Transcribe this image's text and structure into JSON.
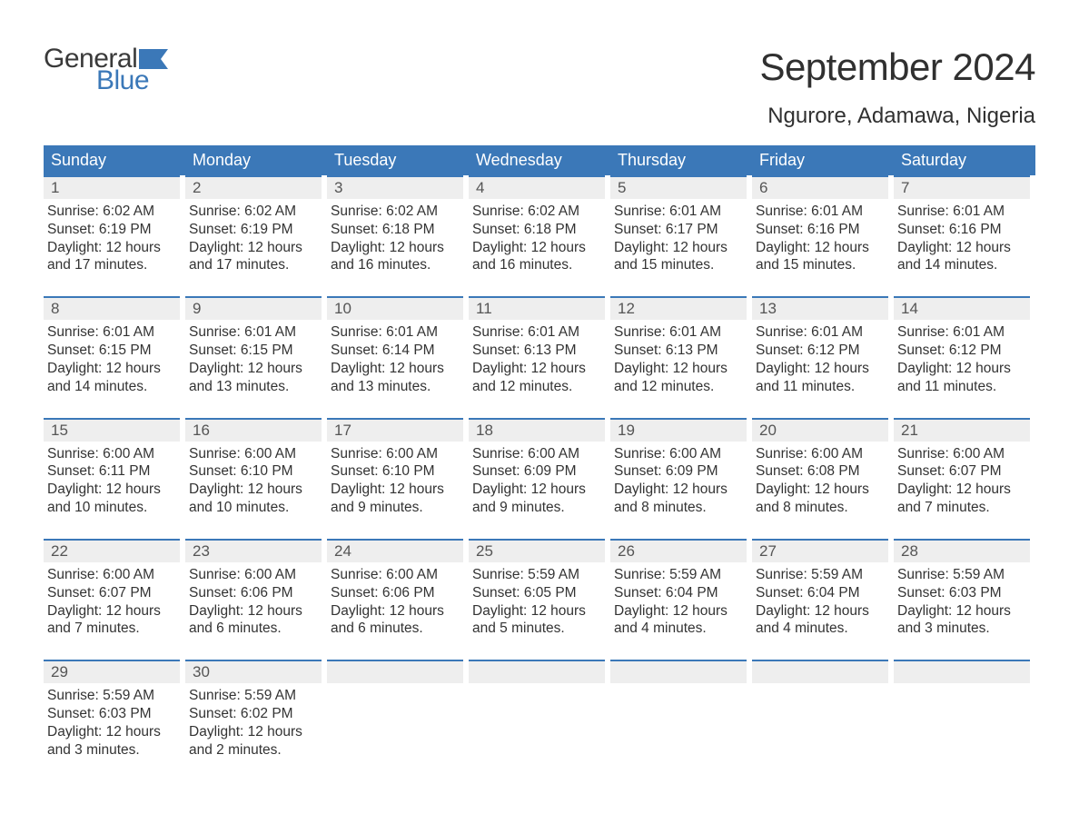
{
  "logo": {
    "text_general": "General",
    "text_blue": "Blue",
    "flag_color": "#3b78b8"
  },
  "title": "September 2024",
  "location": "Ngurore, Adamawa, Nigeria",
  "colors": {
    "header_bg": "#3b78b8",
    "header_text": "#ffffff",
    "daynum_bg": "#eeeeee",
    "daynum_border": "#3b78b8",
    "body_text": "#333333",
    "title_text": "#303030",
    "page_bg": "#ffffff"
  },
  "typography": {
    "title_fontsize": 42,
    "location_fontsize": 24,
    "weekday_fontsize": 18,
    "daynum_fontsize": 17,
    "body_fontsize": 15.5,
    "logo_fontsize": 30
  },
  "weekdays": [
    "Sunday",
    "Monday",
    "Tuesday",
    "Wednesday",
    "Thursday",
    "Friday",
    "Saturday"
  ],
  "weeks": [
    [
      {
        "n": "1",
        "sunrise": "6:02 AM",
        "sunset": "6:19 PM",
        "daylight": "12 hours and 17 minutes."
      },
      {
        "n": "2",
        "sunrise": "6:02 AM",
        "sunset": "6:19 PM",
        "daylight": "12 hours and 17 minutes."
      },
      {
        "n": "3",
        "sunrise": "6:02 AM",
        "sunset": "6:18 PM",
        "daylight": "12 hours and 16 minutes."
      },
      {
        "n": "4",
        "sunrise": "6:02 AM",
        "sunset": "6:18 PM",
        "daylight": "12 hours and 16 minutes."
      },
      {
        "n": "5",
        "sunrise": "6:01 AM",
        "sunset": "6:17 PM",
        "daylight": "12 hours and 15 minutes."
      },
      {
        "n": "6",
        "sunrise": "6:01 AM",
        "sunset": "6:16 PM",
        "daylight": "12 hours and 15 minutes."
      },
      {
        "n": "7",
        "sunrise": "6:01 AM",
        "sunset": "6:16 PM",
        "daylight": "12 hours and 14 minutes."
      }
    ],
    [
      {
        "n": "8",
        "sunrise": "6:01 AM",
        "sunset": "6:15 PM",
        "daylight": "12 hours and 14 minutes."
      },
      {
        "n": "9",
        "sunrise": "6:01 AM",
        "sunset": "6:15 PM",
        "daylight": "12 hours and 13 minutes."
      },
      {
        "n": "10",
        "sunrise": "6:01 AM",
        "sunset": "6:14 PM",
        "daylight": "12 hours and 13 minutes."
      },
      {
        "n": "11",
        "sunrise": "6:01 AM",
        "sunset": "6:13 PM",
        "daylight": "12 hours and 12 minutes."
      },
      {
        "n": "12",
        "sunrise": "6:01 AM",
        "sunset": "6:13 PM",
        "daylight": "12 hours and 12 minutes."
      },
      {
        "n": "13",
        "sunrise": "6:01 AM",
        "sunset": "6:12 PM",
        "daylight": "12 hours and 11 minutes."
      },
      {
        "n": "14",
        "sunrise": "6:01 AM",
        "sunset": "6:12 PM",
        "daylight": "12 hours and 11 minutes."
      }
    ],
    [
      {
        "n": "15",
        "sunrise": "6:00 AM",
        "sunset": "6:11 PM",
        "daylight": "12 hours and 10 minutes."
      },
      {
        "n": "16",
        "sunrise": "6:00 AM",
        "sunset": "6:10 PM",
        "daylight": "12 hours and 10 minutes."
      },
      {
        "n": "17",
        "sunrise": "6:00 AM",
        "sunset": "6:10 PM",
        "daylight": "12 hours and 9 minutes."
      },
      {
        "n": "18",
        "sunrise": "6:00 AM",
        "sunset": "6:09 PM",
        "daylight": "12 hours and 9 minutes."
      },
      {
        "n": "19",
        "sunrise": "6:00 AM",
        "sunset": "6:09 PM",
        "daylight": "12 hours and 8 minutes."
      },
      {
        "n": "20",
        "sunrise": "6:00 AM",
        "sunset": "6:08 PM",
        "daylight": "12 hours and 8 minutes."
      },
      {
        "n": "21",
        "sunrise": "6:00 AM",
        "sunset": "6:07 PM",
        "daylight": "12 hours and 7 minutes."
      }
    ],
    [
      {
        "n": "22",
        "sunrise": "6:00 AM",
        "sunset": "6:07 PM",
        "daylight": "12 hours and 7 minutes."
      },
      {
        "n": "23",
        "sunrise": "6:00 AM",
        "sunset": "6:06 PM",
        "daylight": "12 hours and 6 minutes."
      },
      {
        "n": "24",
        "sunrise": "6:00 AM",
        "sunset": "6:06 PM",
        "daylight": "12 hours and 6 minutes."
      },
      {
        "n": "25",
        "sunrise": "5:59 AM",
        "sunset": "6:05 PM",
        "daylight": "12 hours and 5 minutes."
      },
      {
        "n": "26",
        "sunrise": "5:59 AM",
        "sunset": "6:04 PM",
        "daylight": "12 hours and 4 minutes."
      },
      {
        "n": "27",
        "sunrise": "5:59 AM",
        "sunset": "6:04 PM",
        "daylight": "12 hours and 4 minutes."
      },
      {
        "n": "28",
        "sunrise": "5:59 AM",
        "sunset": "6:03 PM",
        "daylight": "12 hours and 3 minutes."
      }
    ],
    [
      {
        "n": "29",
        "sunrise": "5:59 AM",
        "sunset": "6:03 PM",
        "daylight": "12 hours and 3 minutes."
      },
      {
        "n": "30",
        "sunrise": "5:59 AM",
        "sunset": "6:02 PM",
        "daylight": "12 hours and 2 minutes."
      },
      null,
      null,
      null,
      null,
      null
    ]
  ],
  "labels": {
    "sunrise": "Sunrise: ",
    "sunset": "Sunset: ",
    "daylight": "Daylight: "
  }
}
